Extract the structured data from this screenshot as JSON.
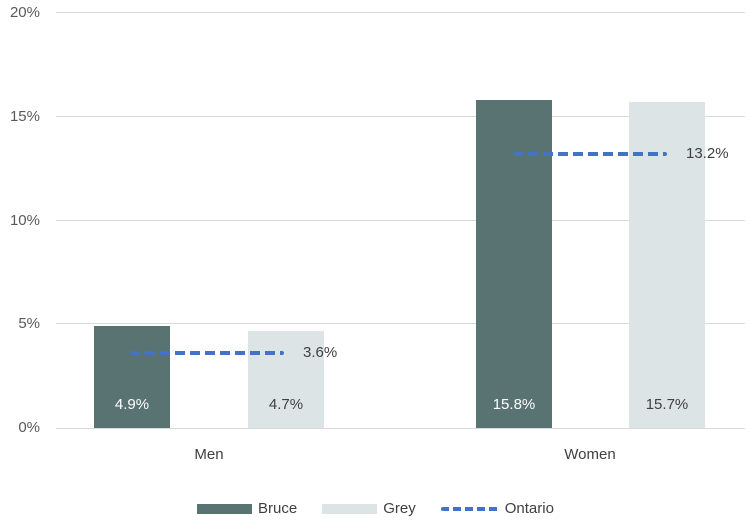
{
  "chart_data": {
    "type": "bar",
    "title": "",
    "categories": [
      "Men",
      "Women"
    ],
    "series": [
      {
        "name": "Bruce",
        "color": "#597373",
        "values": [
          4.9,
          15.8
        ],
        "labels": [
          "4.9%",
          "15.8%"
        ]
      },
      {
        "name": "Grey",
        "color": "#dde4e6",
        "values": [
          4.7,
          15.7
        ],
        "labels": [
          "4.7%",
          "15.7%"
        ]
      }
    ],
    "reference_line": {
      "name": "Ontario",
      "color": "#4472c4",
      "style": "dashed",
      "values": [
        3.6,
        13.2
      ],
      "labels": [
        "3.6%",
        "13.2%"
      ]
    },
    "y_axis": {
      "min": 0,
      "max": 20,
      "ticks": [
        {
          "value": 0,
          "label": "0%"
        },
        {
          "value": 5,
          "label": "5%"
        },
        {
          "value": 10,
          "label": "10%"
        },
        {
          "value": 15,
          "label": "15%"
        },
        {
          "value": 20,
          "label": "20%"
        }
      ]
    },
    "legend": {
      "position": "bottom",
      "items": [
        {
          "label": "Bruce",
          "swatch": "bar",
          "color": "#597373"
        },
        {
          "label": "Grey",
          "swatch": "bar",
          "color": "#dde4e6"
        },
        {
          "label": "Ontario",
          "swatch": "dashed-line",
          "color": "#4472c4"
        }
      ]
    },
    "grid": true
  },
  "colors": {
    "background": "#ffffff",
    "gridline": "#d9d9d9",
    "axis_text": "#595959",
    "label_text": "#404040",
    "bar_label_on_dark": "#ffffff"
  }
}
